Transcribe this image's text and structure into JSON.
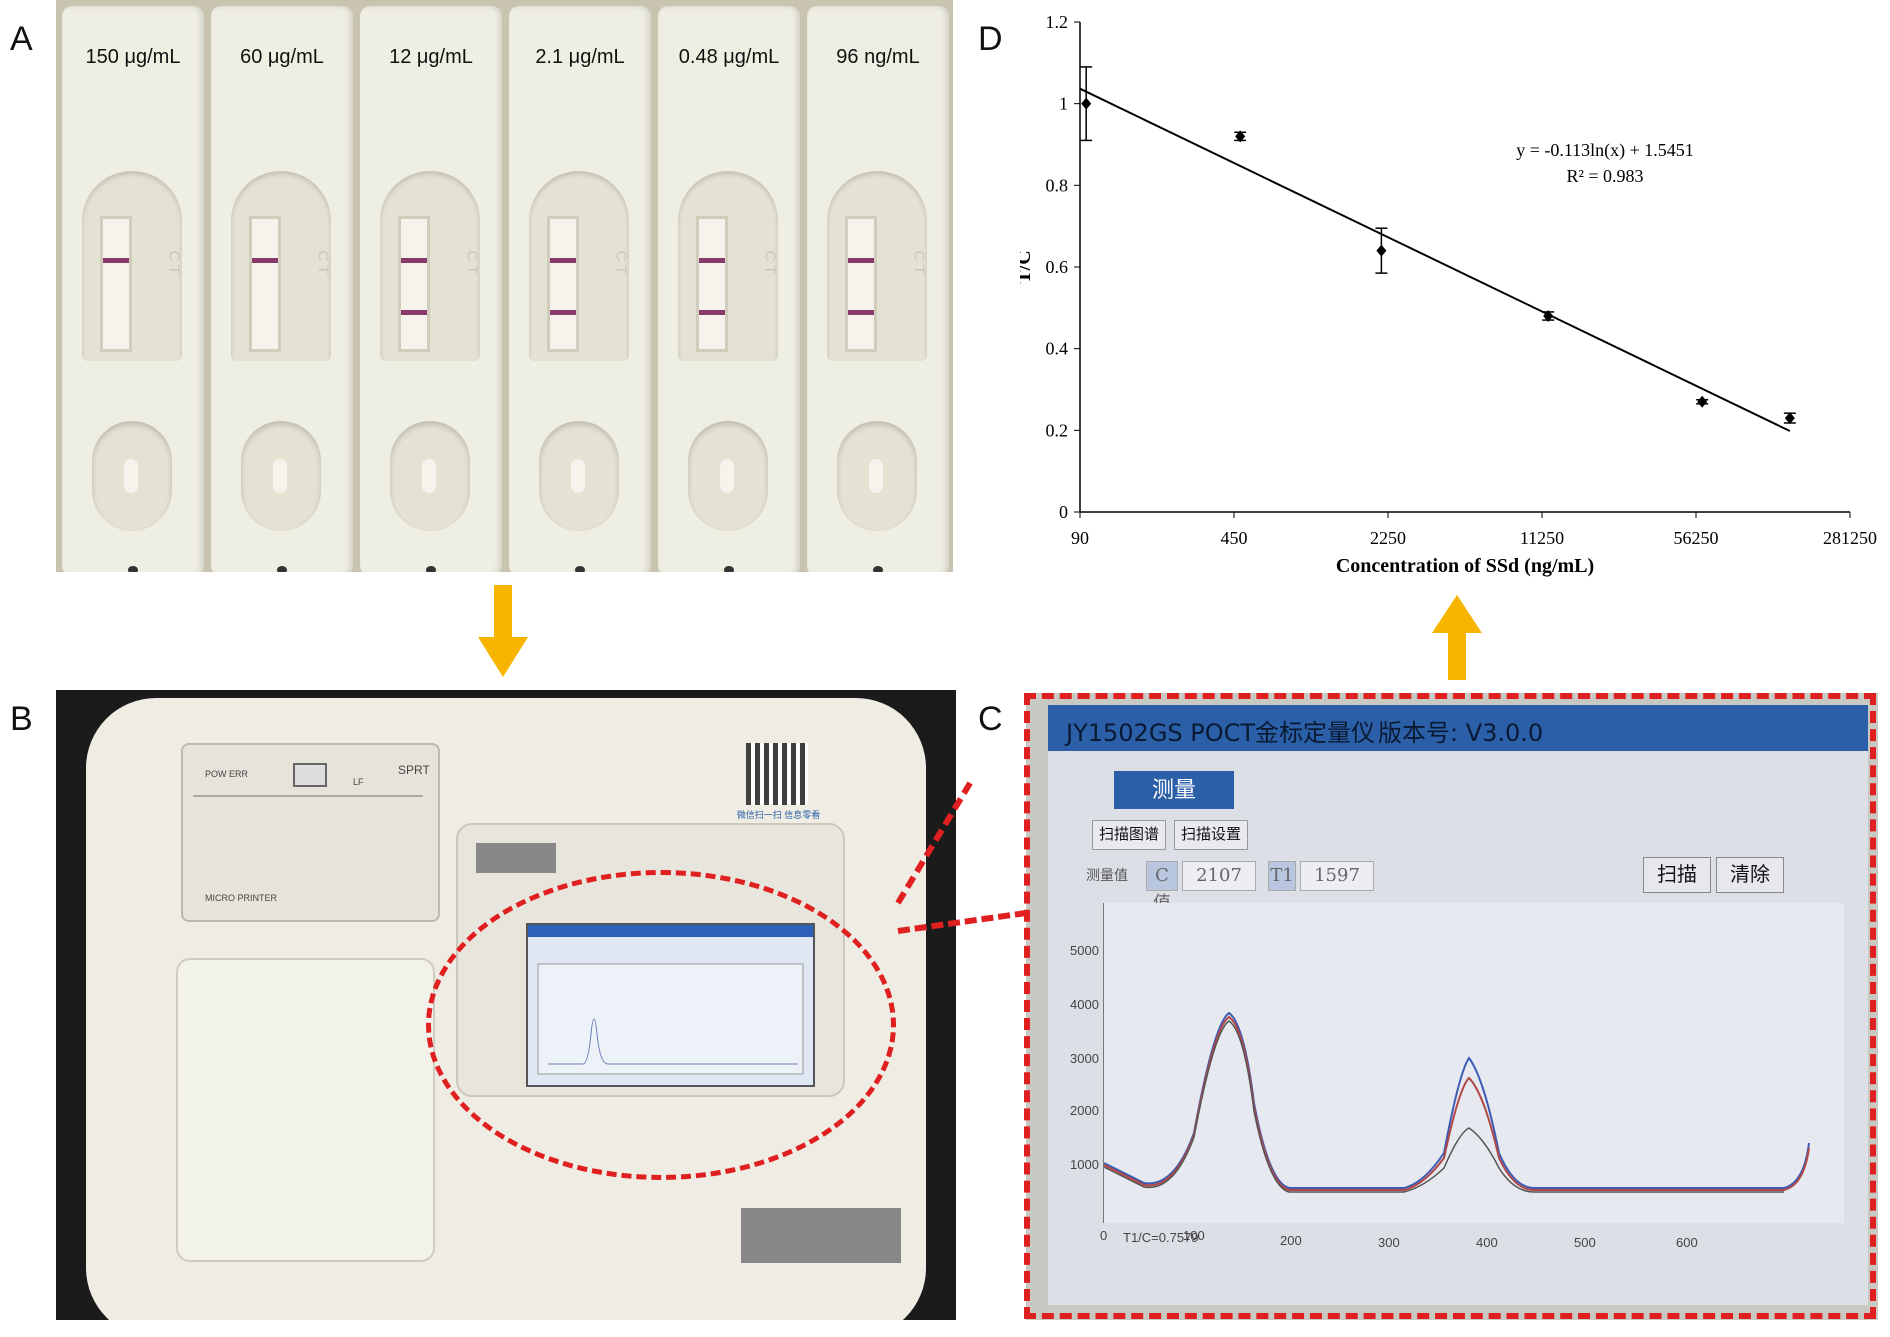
{
  "panel_labels": {
    "a": "A",
    "b": "B",
    "c": "C",
    "d": "D"
  },
  "panel_a": {
    "strips": [
      {
        "conc": "150 μg/mL",
        "bands": [
          0.3
        ]
      },
      {
        "conc": "60 μg/mL",
        "bands": [
          0.3
        ]
      },
      {
        "conc": "12 μg/mL",
        "bands": [
          0.3,
          0.7
        ]
      },
      {
        "conc": "2.1 μg/mL",
        "bands": [
          0.3,
          0.7
        ]
      },
      {
        "conc": "0.48 μg/mL",
        "bands": [
          0.3,
          0.7
        ]
      },
      {
        "conc": "96 ng/mL",
        "bands": [
          0.3,
          0.7
        ]
      }
    ]
  },
  "panel_b": {
    "printer_label": "MICRO PRINTER",
    "pow_label": "POW ERR",
    "sprt_label": "SPRT",
    "lf_label": "LF",
    "qr_caption": "微信扫一扫 信息零看你"
  },
  "panel_c": {
    "title_app": "JY1502GS POCT金标定量仪",
    "title_version": "版本号: V3.0.0",
    "measure_button": "测量",
    "tab_scan_map": "扫描图谱",
    "tab_scan_settings": "扫描设置",
    "measure_value_label": "测量值",
    "c_label": "C值",
    "c_value": "2107",
    "t1_label": "T1",
    "t1_value": "1597",
    "scan_button": "扫描",
    "clear_button": "清除",
    "y_ticks": [
      "1000",
      "2000",
      "3000",
      "4000",
      "5000"
    ],
    "x_ticks": [
      "0",
      "100",
      "200",
      "300",
      "400",
      "500",
      "600"
    ],
    "ratio_text": "T1/C=0.7579"
  },
  "chart_data": {
    "type": "scatter",
    "title": "",
    "xlabel": "Concentration of SSd (ng/mL)",
    "ylabel": "T/C",
    "x_scale": "log",
    "x_ticks": [
      "90",
      "450",
      "2250",
      "11250",
      "56250",
      "281250"
    ],
    "y_ticks": [
      "0",
      "0.2",
      "0.4",
      "0.6",
      "0.8",
      "1",
      "1.2"
    ],
    "ylim": [
      0,
      1.2
    ],
    "xlim": [
      90,
      281250
    ],
    "series": [
      {
        "points": [
          {
            "x": 96,
            "y": 1.0,
            "err": 0.09
          },
          {
            "x": 480,
            "y": 0.92,
            "err": 0.01
          },
          {
            "x": 2100,
            "y": 0.64,
            "err": 0.055
          },
          {
            "x": 12000,
            "y": 0.48,
            "err": 0.01
          },
          {
            "x": 60000,
            "y": 0.27,
            "err": 0.005
          },
          {
            "x": 150000,
            "y": 0.23,
            "err": 0.012
          }
        ]
      }
    ],
    "trendline": {
      "a": -0.113,
      "b": 1.5451,
      "x_from": 90,
      "x_to": 150000
    },
    "equation": "y = -0.113ln(x) + 1.5451",
    "r2": "R² = 0.983"
  },
  "arrow_color": "#f7b500",
  "dash_color": "#e02020"
}
